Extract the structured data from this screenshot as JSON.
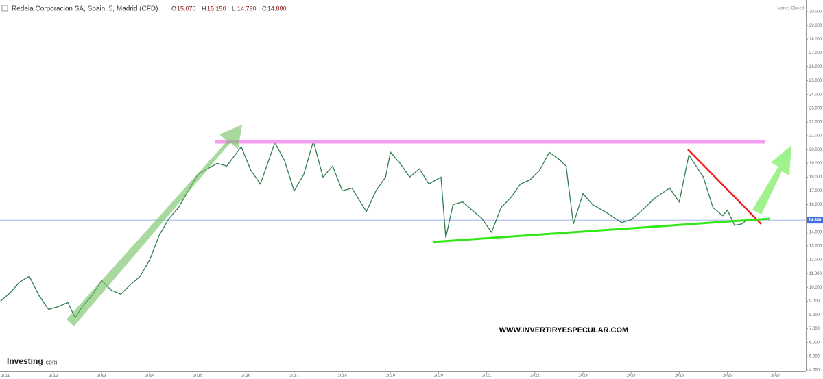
{
  "chart_data": {
    "type": "line",
    "title": "Redeia Corporacion SA, Spain, 5, Madrid (CFD)",
    "ohlc": [
      {
        "key": "O",
        "label": "15.070"
      },
      {
        "key": "H",
        "label": "15.150"
      },
      {
        "key": "L",
        "label": "14.790"
      },
      {
        "key": "C",
        "label": "14.880"
      }
    ],
    "status": "Market Closed",
    "brand": "Investing",
    "brand_suffix": ".com",
    "watermark": "WWW.INVERTIRYESPECULAR.COM",
    "last_price": {
      "value": 14.88,
      "label": "14.880"
    },
    "series": [
      {
        "color": "#2e7d4f",
        "x": [
          2010.9,
          2011.1,
          2011.3,
          2011.5,
          2011.7,
          2011.9,
          2012.1,
          2012.3,
          2012.45,
          2012.6,
          2012.8,
          2013.0,
          2013.2,
          2013.4,
          2013.6,
          2013.8,
          2014.0,
          2014.2,
          2014.4,
          2014.6,
          2014.8,
          2015.0,
          2015.2,
          2015.4,
          2015.6,
          2015.9,
          2016.1,
          2016.3,
          2016.6,
          2016.8,
          2017.0,
          2017.2,
          2017.4,
          2017.6,
          2017.8,
          2018.0,
          2018.2,
          2018.5,
          2018.7,
          2018.9,
          2019.0,
          2019.2,
          2019.4,
          2019.6,
          2019.8,
          2020.05,
          2020.15,
          2020.3,
          2020.5,
          2020.7,
          2020.9,
          2021.1,
          2021.3,
          2021.5,
          2021.7,
          2021.9,
          2022.1,
          2022.3,
          2022.5,
          2022.65,
          2022.8,
          2023.0,
          2023.2,
          2023.5,
          2023.8,
          2024.0,
          2024.2,
          2024.5,
          2024.8,
          2025.0,
          2025.2,
          2025.35,
          2025.5,
          2025.7,
          2025.9,
          2026.0,
          2026.15,
          2026.3,
          2026.4
        ],
        "values": [
          9.0,
          9.6,
          10.4,
          10.8,
          9.4,
          8.4,
          8.6,
          8.9,
          7.8,
          8.6,
          9.4,
          10.5,
          9.8,
          9.5,
          10.2,
          10.8,
          12.0,
          13.8,
          15.0,
          15.8,
          17.0,
          18.2,
          18.6,
          19.0,
          18.8,
          20.2,
          18.5,
          17.5,
          20.5,
          19.2,
          17.0,
          18.2,
          20.6,
          18.0,
          18.8,
          17.0,
          17.2,
          15.5,
          17.0,
          18.0,
          19.8,
          19.0,
          18.0,
          18.6,
          17.5,
          18.0,
          13.6,
          16.0,
          16.2,
          15.6,
          15.0,
          14.0,
          15.8,
          16.5,
          17.5,
          17.8,
          18.5,
          19.8,
          19.3,
          18.8,
          14.6,
          16.8,
          16.0,
          15.4,
          14.7,
          14.9,
          15.5,
          16.5,
          17.2,
          16.2,
          19.6,
          18.8,
          18.0,
          15.8,
          15.2,
          15.6,
          14.5,
          14.6,
          14.88
        ]
      }
    ],
    "xlim": [
      2010.89,
      2027.63
    ],
    "xticks": [
      2011,
      2012,
      2013,
      2014,
      2015,
      2016,
      2017,
      2018,
      2019,
      2020,
      2021,
      2022,
      2023,
      2024,
      2025,
      2026,
      2027
    ],
    "ylim": [
      3.9,
      30.6
    ],
    "yticks": [
      {
        "value": 4,
        "label": "4.000"
      },
      {
        "value": 5,
        "label": "5.000"
      },
      {
        "value": 6,
        "label": "6.000"
      },
      {
        "value": 7,
        "label": "7.000"
      },
      {
        "value": 8,
        "label": "8.000"
      },
      {
        "value": 9,
        "label": "9.000"
      },
      {
        "value": 10,
        "label": "10.000"
      },
      {
        "value": 11,
        "label": "11.000"
      },
      {
        "value": 12,
        "label": "12.000"
      },
      {
        "value": 13,
        "label": "13.000"
      },
      {
        "value": 14,
        "label": "14.000"
      },
      {
        "value": 15,
        "label": "15.000"
      },
      {
        "value": 16,
        "label": "16.000"
      },
      {
        "value": 17,
        "label": "17.000"
      },
      {
        "value": 18,
        "label": "18.000"
      },
      {
        "value": 19,
        "label": "19.000"
      },
      {
        "value": 20,
        "label": "20.000"
      },
      {
        "value": 21,
        "label": "21.000"
      },
      {
        "value": 22,
        "label": "22.000"
      },
      {
        "value": 23,
        "label": "23.000"
      },
      {
        "value": 24,
        "label": "24.000"
      },
      {
        "value": 25,
        "label": "25.000"
      },
      {
        "value": 26,
        "label": "26.000"
      },
      {
        "value": 27,
        "label": "27.000"
      },
      {
        "value": 28,
        "label": "28.000"
      },
      {
        "value": 29,
        "label": "29.000"
      },
      {
        "value": 30,
        "label": "30.000"
      }
    ]
  }
}
